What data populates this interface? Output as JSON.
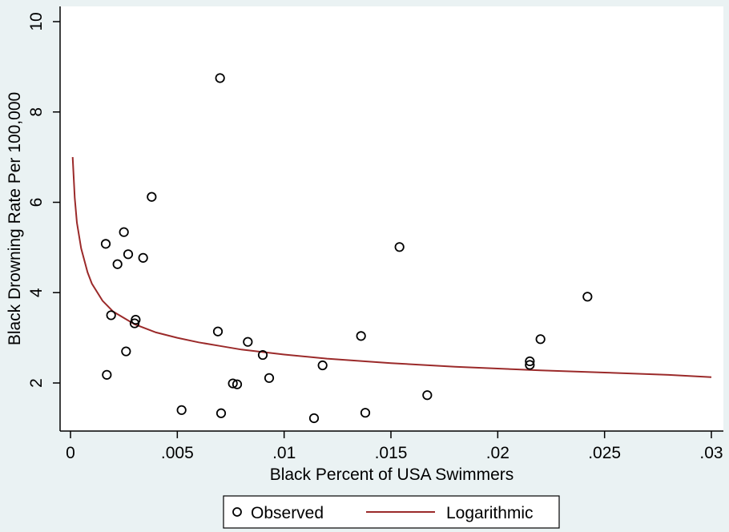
{
  "chart_data": {
    "type": "scatter",
    "xlabel": "Black Percent of USA Swimmers",
    "ylabel": "Black Drowning Rate Per 100,000",
    "xlim": [
      0,
      0.03
    ],
    "ylim": [
      1,
      10
    ],
    "xticks": [
      0,
      0.005,
      0.01,
      0.015,
      0.02,
      0.025,
      0.03
    ],
    "xtick_labels": [
      "0",
      ".005",
      ".01",
      ".015",
      ".02",
      ".025",
      ".03"
    ],
    "yticks": [
      2,
      4,
      6,
      8,
      10
    ],
    "ytick_labels": [
      "2",
      "4",
      "6",
      "8",
      "10"
    ],
    "grid": false,
    "legend_position": "bottom-center",
    "series": [
      {
        "name": "Observed",
        "type": "scatter",
        "marker": "hollow-circle",
        "color": "#000000",
        "points": [
          [
            0.00165,
            5.08
          ],
          [
            0.0017,
            2.18
          ],
          [
            0.0019,
            3.5
          ],
          [
            0.0022,
            4.63
          ],
          [
            0.0025,
            5.34
          ],
          [
            0.0026,
            2.7
          ],
          [
            0.0027,
            4.85
          ],
          [
            0.003,
            3.32
          ],
          [
            0.00305,
            3.4
          ],
          [
            0.0034,
            4.77
          ],
          [
            0.0038,
            6.12
          ],
          [
            0.0052,
            1.4
          ],
          [
            0.0069,
            3.14
          ],
          [
            0.007,
            8.75
          ],
          [
            0.00705,
            1.33
          ],
          [
            0.0076,
            1.99
          ],
          [
            0.0078,
            1.97
          ],
          [
            0.0083,
            2.91
          ],
          [
            0.009,
            2.62
          ],
          [
            0.0093,
            2.11
          ],
          [
            0.0114,
            1.22
          ],
          [
            0.0118,
            2.39
          ],
          [
            0.0136,
            3.04
          ],
          [
            0.0138,
            1.34
          ],
          [
            0.0154,
            5.01
          ],
          [
            0.0167,
            1.73
          ],
          [
            0.0215,
            2.48
          ],
          [
            0.0215,
            2.4
          ],
          [
            0.022,
            2.97
          ],
          [
            0.0242,
            3.91
          ]
        ]
      },
      {
        "name": "Logarithmic",
        "type": "line",
        "color": "#9b2a2a",
        "points": [
          [
            0.0001,
            7.0
          ],
          [
            0.0002,
            6.1
          ],
          [
            0.0003,
            5.55
          ],
          [
            0.0005,
            4.98
          ],
          [
            0.0008,
            4.45
          ],
          [
            0.001,
            4.2
          ],
          [
            0.0015,
            3.82
          ],
          [
            0.002,
            3.58
          ],
          [
            0.003,
            3.3
          ],
          [
            0.004,
            3.12
          ],
          [
            0.005,
            3.0
          ],
          [
            0.006,
            2.9
          ],
          [
            0.007,
            2.82
          ],
          [
            0.008,
            2.74
          ],
          [
            0.01,
            2.63
          ],
          [
            0.012,
            2.54
          ],
          [
            0.015,
            2.44
          ],
          [
            0.018,
            2.36
          ],
          [
            0.02,
            2.32
          ],
          [
            0.022,
            2.28
          ],
          [
            0.025,
            2.23
          ],
          [
            0.028,
            2.18
          ],
          [
            0.03,
            2.13
          ]
        ]
      }
    ]
  }
}
